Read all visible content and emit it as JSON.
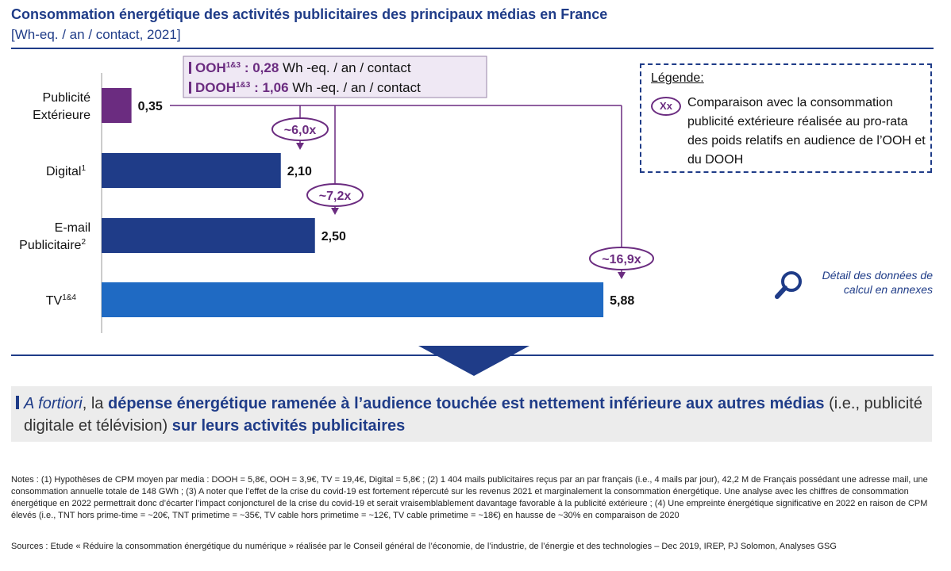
{
  "header": {
    "title": "Consommation énergétique des activités publicitaires des principaux médias en France",
    "subtitle": "[Wh-eq. / an / contact, 2021]"
  },
  "colors": {
    "navy": "#1f3c88",
    "tv_blue": "#1f6ac3",
    "purple": "#6b2c80",
    "lilac_bg": "#efe8f4"
  },
  "chart_data": {
    "type": "bar",
    "orientation": "horizontal",
    "categories": [
      {
        "lines": [
          "Publicité",
          "Extérieure"
        ],
        "sup": ""
      },
      {
        "lines": [
          "Digital"
        ],
        "sup": "1"
      },
      {
        "lines": [
          "E-mail",
          "Publicitaire"
        ],
        "sup": "2"
      },
      {
        "lines": [
          "TV"
        ],
        "sup": "1&4"
      }
    ],
    "values": [
      0.35,
      2.1,
      2.5,
      5.88
    ],
    "value_labels": [
      "0,35",
      "2,10",
      "2,50",
      "5,88"
    ],
    "bar_colors": [
      "#6b2c80",
      "#1f3c88",
      "#1f3c88",
      "#1f6ac3"
    ],
    "ooh_box": [
      {
        "name": "OOH",
        "sup": "1&3",
        "value": "0,28",
        "unit": "Wh -eq. / an / contact"
      },
      {
        "name": "DOOH",
        "sup": "1&3",
        "value": "1,06",
        "unit": "Wh -eq. / an / contact"
      }
    ],
    "comparisons": [
      {
        "label": "~6,0x",
        "target": 1
      },
      {
        "label": "~7,2x",
        "target": 2
      },
      {
        "label": "~16,9x",
        "target": 3
      }
    ]
  },
  "legend": {
    "title": "Légende:",
    "badge": "Xx",
    "text": "Comparaison avec la consommation publicité extérieure réalisée au pro-rata des poids relatifs en audience de l’OOH et du DOOH"
  },
  "detail": {
    "text": "Détail des données de calcul en annexes",
    "icon": "magnifier-icon"
  },
  "callout": {
    "p1": "A fortiori",
    "p2": ", la ",
    "p3": "dépense énergétique ramenée à l’audience touchée est nettement inférieure aux autres médias",
    "p4": " (i.e., publicité digitale et télévision) ",
    "p5": "sur leurs activités publicitaires"
  },
  "notes": "Notes : (1) Hypothèses de CPM moyen par media : DOOH = 5,8€, OOH = 3,9€, TV = 19,4€, Digital = 5,8€ ; (2) 1 404 mails publicitaires reçus par an par français (i.e., 4 mails par jour), 42,2 M de Français possédant une adresse mail, une consommation annuelle totale de 148 GWh ; (3) A noter que l’effet de la crise du covid-19 est fortement répercuté sur les revenus 2021 et marginalement la consommation énergétique. Une analyse avec les chiffres de consommation énergétique en 2022 permettrait donc d’écarter l’impact conjoncturel de la crise du covid-19 et serait vraisemblablement davantage favorable à la publicité extérieure ; (4) Une empreinte énergétique significative en 2022 en raison de CPM élevés (i.e., TNT hors prime-time = ~20€, TNT primetime = ~35€, TV cable hors primetime = ~12€, TV cable primetime = ~18€) en hausse de ~30% en comparaison de 2020",
  "sources": "Sources : Etude « Réduire la consommation énergétique du numérique » réalisée par le Conseil général de l’économie, de l’industrie, de l’énergie et des technologies – Dec 2019, IREP, PJ Solomon, Analyses GSG"
}
